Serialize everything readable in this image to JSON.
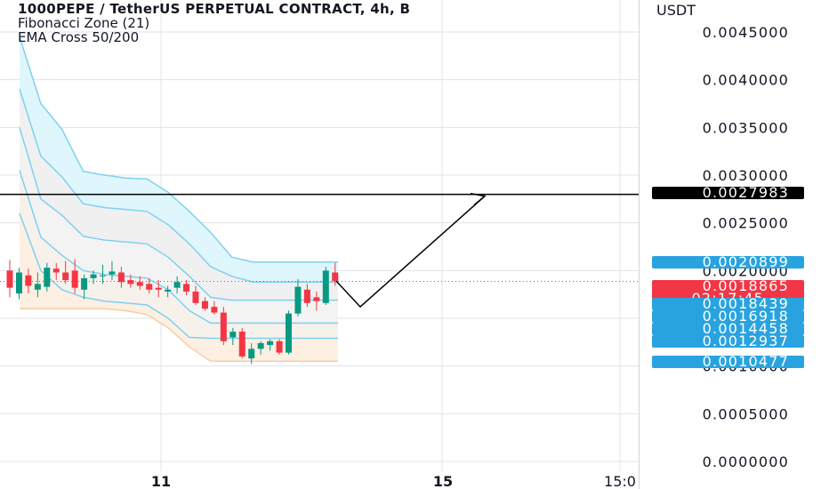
{
  "legend": {
    "title": "1000PEPE / TetherUS PERPETUAL CONTRACT, 4h, B",
    "indicator_1": "Fibonacci Zone (21)",
    "indicator_2": "EMA Cross 50/200"
  },
  "chart_data": {
    "type": "candlestick",
    "y_axis_unit": "USDT",
    "ylim": [
      -3e-05,
      0.0047
    ],
    "y_ticks": [
      "0.0000000",
      "0.0005000",
      "0.0010000",
      "0.0015000",
      "0.0020000",
      "0.0025000",
      "0.0030000",
      "0.0035000",
      "0.0040000",
      "0.0045000"
    ],
    "x_ticks": [
      "11",
      "15",
      "15:0"
    ],
    "grid": true,
    "price_labels": [
      {
        "value": "0.0027983",
        "color": "#000000"
      },
      {
        "value": "0.0020899",
        "color": "#29a3e0"
      },
      {
        "value": "0.0018865",
        "color": "#f23645",
        "sub": "02:17:45"
      },
      {
        "value": "0.0018439",
        "color": "#29a3e0"
      },
      {
        "value": "0.0016918",
        "color": "#29a3e0"
      },
      {
        "value": "0.0014458",
        "color": "#29a3e0"
      },
      {
        "value": "0.0012937",
        "color": "#29a3e0"
      },
      {
        "value": "0.0010477",
        "color": "#29a3e0"
      }
    ],
    "horizontal_line": 0.0027983,
    "current_price": 0.0018865,
    "projection_path": [
      0.00189,
      0.00162,
      0.00278
    ],
    "fib_zone": {
      "top": [
        0.00445,
        0.00375,
        0.00348,
        0.00304,
        0.003,
        0.00297,
        0.00296,
        0.00282,
        0.00262,
        0.0024,
        0.00214,
        0.00209,
        0.00209,
        0.00209,
        0.00209,
        0.00209
      ],
      "l1": [
        0.0039,
        0.0032,
        0.00298,
        0.0027,
        0.00266,
        0.00264,
        0.00262,
        0.00248,
        0.00228,
        0.00204,
        0.00194,
        0.00188,
        0.00188,
        0.00188,
        0.00188,
        0.00188
      ],
      "l2": [
        0.0035,
        0.00275,
        0.00258,
        0.00236,
        0.00232,
        0.0023,
        0.00228,
        0.00214,
        0.00194,
        0.00172,
        0.00169,
        0.00169,
        0.00169,
        0.00169,
        0.00169,
        0.00169
      ],
      "l3": [
        0.00305,
        0.00235,
        0.00216,
        0.002,
        0.00196,
        0.00194,
        0.00192,
        0.0018,
        0.00158,
        0.00145,
        0.00145,
        0.00145,
        0.00145,
        0.00145,
        0.00145,
        0.00145
      ],
      "l4": [
        0.0026,
        0.002,
        0.0018,
        0.00172,
        0.00168,
        0.00166,
        0.00164,
        0.0015,
        0.0013,
        0.00129,
        0.00129,
        0.00129,
        0.00129,
        0.00129,
        0.00129,
        0.00129
      ],
      "bottom": [
        0.0016,
        0.0016,
        0.0016,
        0.0016,
        0.0016,
        0.00158,
        0.00154,
        0.0014,
        0.0012,
        0.00105,
        0.00105,
        0.00105,
        0.00105,
        0.00105,
        0.00105,
        0.00105
      ]
    },
    "candles": [
      {
        "o": 0.002,
        "h": 0.00211,
        "l": 0.00172,
        "c": 0.00182
      },
      {
        "o": 0.00176,
        "h": 0.00203,
        "l": 0.0017,
        "c": 0.00198
      },
      {
        "o": 0.00195,
        "h": 0.00202,
        "l": 0.00176,
        "c": 0.00184
      },
      {
        "o": 0.0018,
        "h": 0.00198,
        "l": 0.00172,
        "c": 0.00186
      },
      {
        "o": 0.00183,
        "h": 0.00208,
        "l": 0.00178,
        "c": 0.00203
      },
      {
        "o": 0.00202,
        "h": 0.00208,
        "l": 0.0019,
        "c": 0.00198
      },
      {
        "o": 0.00198,
        "h": 0.0021,
        "l": 0.00186,
        "c": 0.0019
      },
      {
        "o": 0.002,
        "h": 0.00212,
        "l": 0.00176,
        "c": 0.00182
      },
      {
        "o": 0.0018,
        "h": 0.00196,
        "l": 0.0017,
        "c": 0.00192
      },
      {
        "o": 0.00192,
        "h": 0.002,
        "l": 0.00186,
        "c": 0.00196
      },
      {
        "o": 0.00194,
        "h": 0.00206,
        "l": 0.00186,
        "c": 0.00195
      },
      {
        "o": 0.00196,
        "h": 0.0021,
        "l": 0.0019,
        "c": 0.00199
      },
      {
        "o": 0.00198,
        "h": 0.00204,
        "l": 0.00182,
        "c": 0.00188
      },
      {
        "o": 0.0019,
        "h": 0.00196,
        "l": 0.00182,
        "c": 0.00186
      },
      {
        "o": 0.00188,
        "h": 0.00194,
        "l": 0.0018,
        "c": 0.00184
      },
      {
        "o": 0.00186,
        "h": 0.00192,
        "l": 0.00176,
        "c": 0.0018
      },
      {
        "o": 0.00182,
        "h": 0.0019,
        "l": 0.00172,
        "c": 0.0018
      },
      {
        "o": 0.00178,
        "h": 0.00184,
        "l": 0.00172,
        "c": 0.0018
      },
      {
        "o": 0.00182,
        "h": 0.00194,
        "l": 0.00176,
        "c": 0.00188
      },
      {
        "o": 0.00186,
        "h": 0.0019,
        "l": 0.00174,
        "c": 0.00178
      },
      {
        "o": 0.00178,
        "h": 0.00184,
        "l": 0.00164,
        "c": 0.00166
      },
      {
        "o": 0.00168,
        "h": 0.00172,
        "l": 0.00158,
        "c": 0.0016
      },
      {
        "o": 0.00162,
        "h": 0.00168,
        "l": 0.00154,
        "c": 0.00156
      },
      {
        "o": 0.00156,
        "h": 0.00162,
        "l": 0.00122,
        "c": 0.00126
      },
      {
        "o": 0.0013,
        "h": 0.0014,
        "l": 0.00122,
        "c": 0.00136
      },
      {
        "o": 0.00136,
        "h": 0.0014,
        "l": 0.00108,
        "c": 0.0011
      },
      {
        "o": 0.00108,
        "h": 0.00124,
        "l": 0.00102,
        "c": 0.00118
      },
      {
        "o": 0.00118,
        "h": 0.00126,
        "l": 0.00112,
        "c": 0.00124
      },
      {
        "o": 0.00122,
        "h": 0.00128,
        "l": 0.00116,
        "c": 0.00126
      },
      {
        "o": 0.00126,
        "h": 0.00128,
        "l": 0.00112,
        "c": 0.00114
      },
      {
        "o": 0.00114,
        "h": 0.00158,
        "l": 0.00112,
        "c": 0.00155
      },
      {
        "o": 0.00155,
        "h": 0.00191,
        "l": 0.00152,
        "c": 0.00183
      },
      {
        "o": 0.0018,
        "h": 0.00186,
        "l": 0.00162,
        "c": 0.00166
      },
      {
        "o": 0.00172,
        "h": 0.00178,
        "l": 0.00158,
        "c": 0.00168
      },
      {
        "o": 0.00166,
        "h": 0.00204,
        "l": 0.00164,
        "c": 0.002
      },
      {
        "o": 0.00198,
        "h": 0.00208,
        "l": 0.00184,
        "c": 0.00189
      }
    ]
  }
}
